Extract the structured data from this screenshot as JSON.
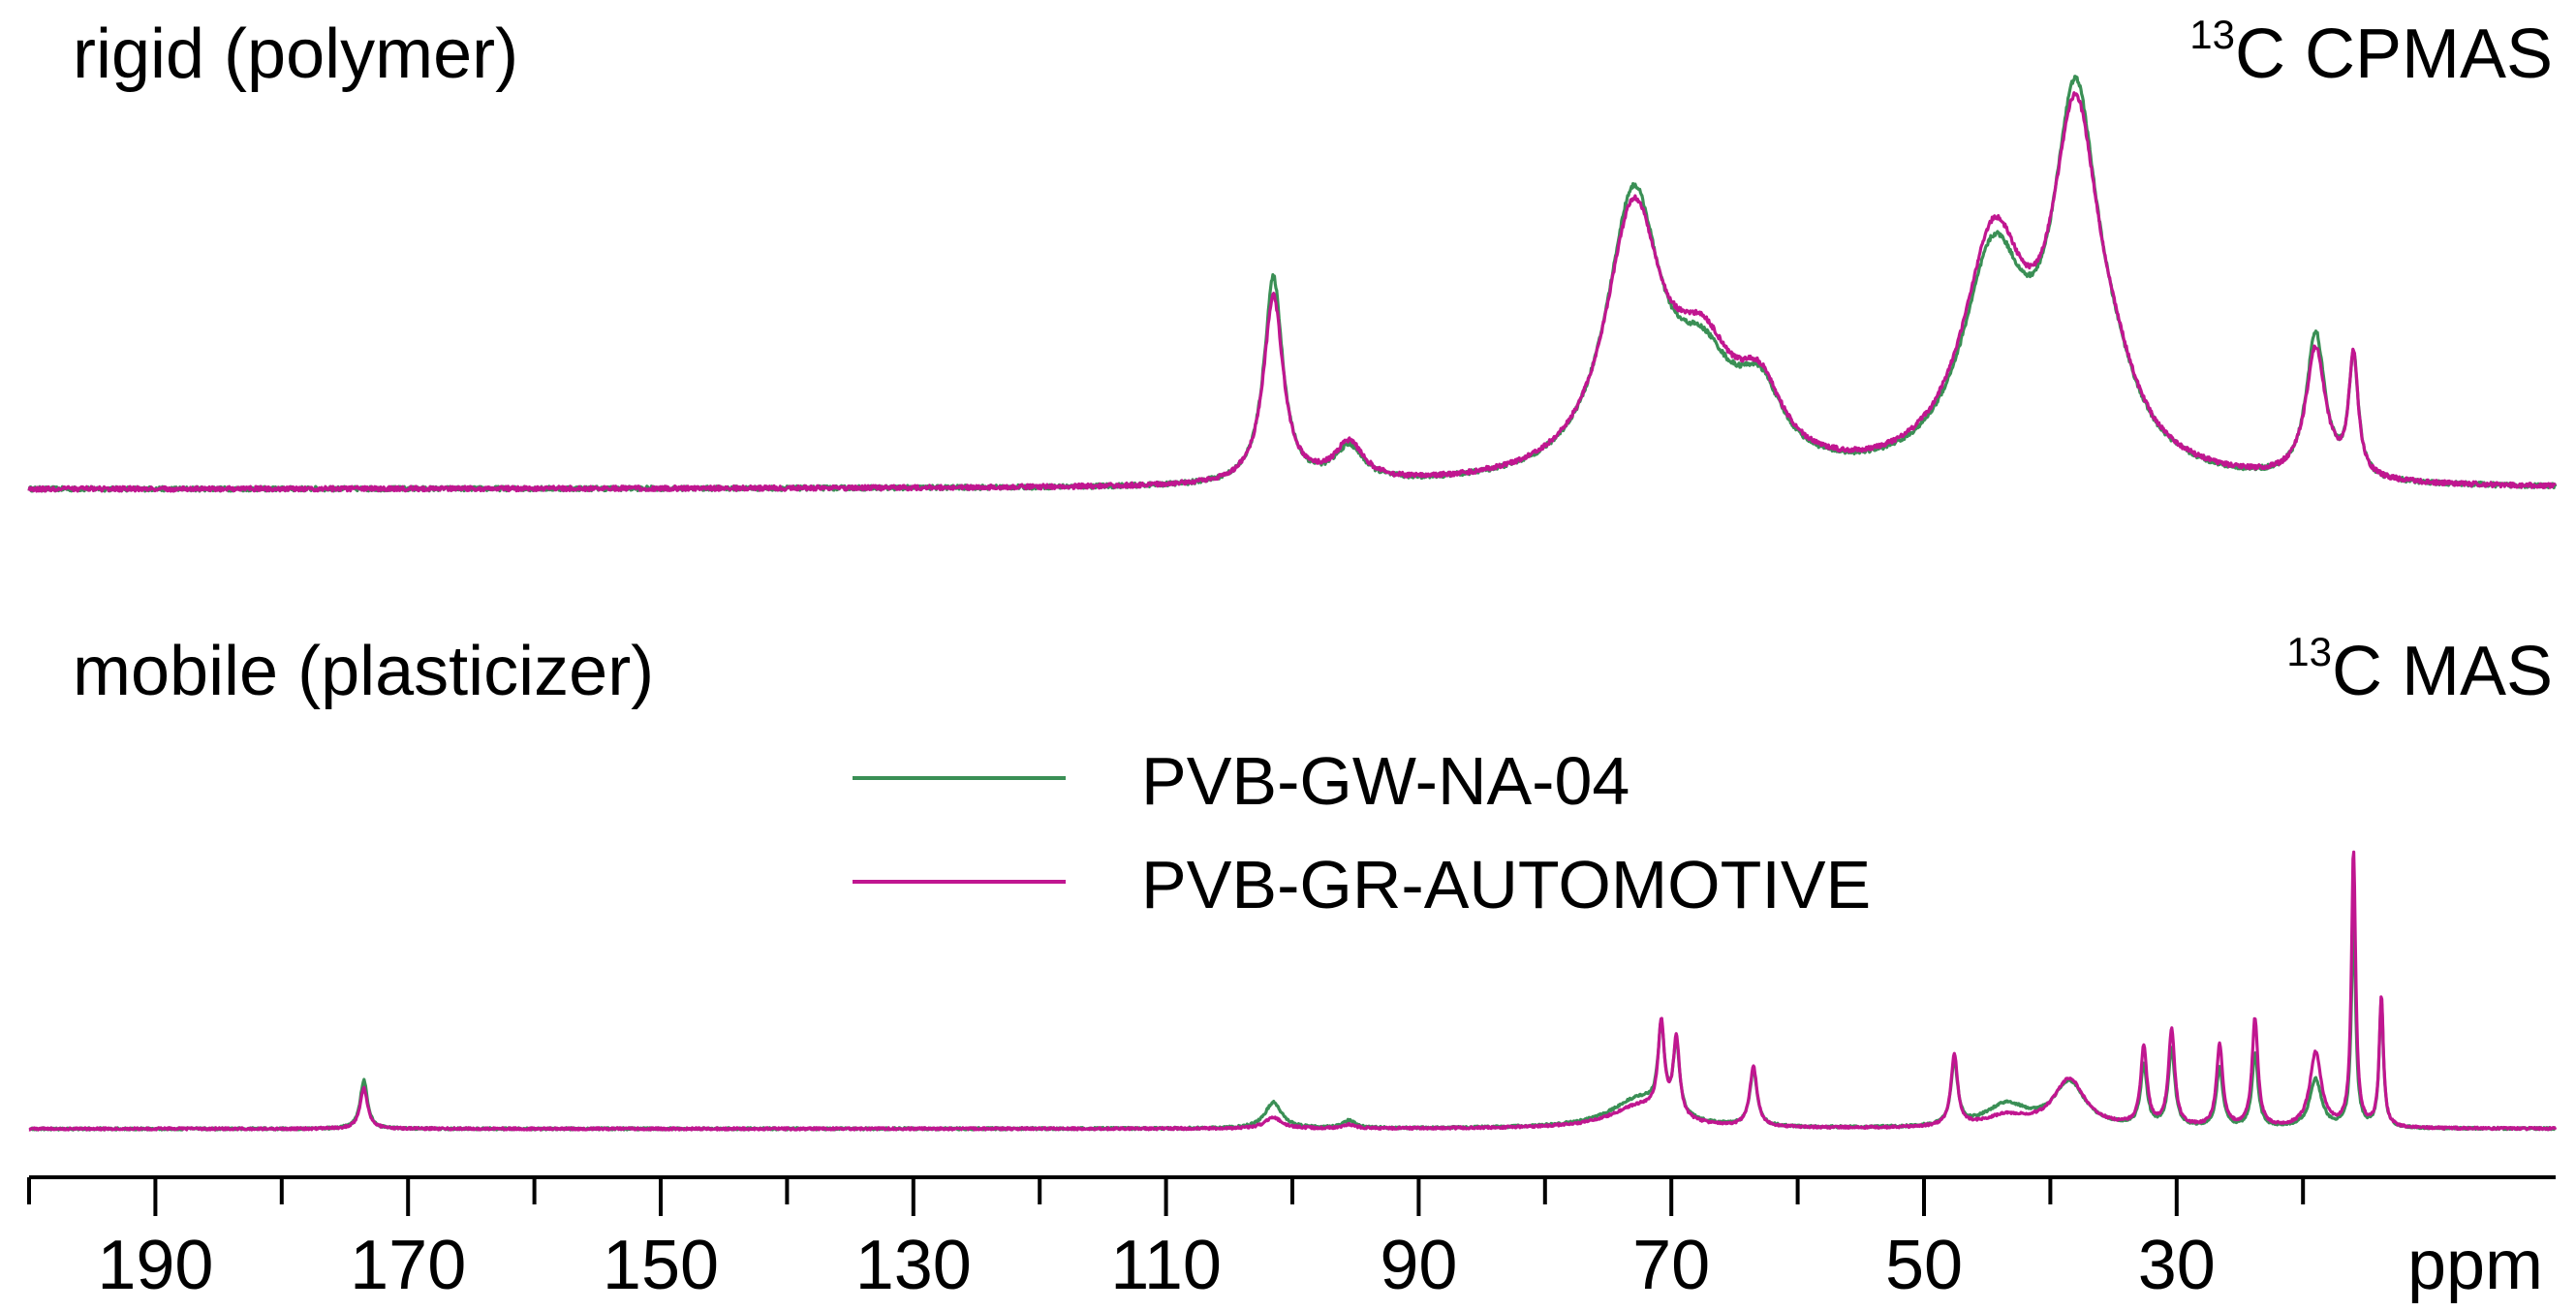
{
  "chart_data": {
    "type": "line",
    "title": "",
    "xlabel": "ppm",
    "x_axis": {
      "reversed": true,
      "range": [
        200,
        0
      ],
      "major_ticks": [
        190,
        170,
        150,
        130,
        110,
        90,
        70,
        50,
        30
      ],
      "tick_labels": [
        "190",
        "170",
        "150",
        "130",
        "110",
        "90",
        "70",
        "50",
        "30"
      ],
      "minor_ticks": [
        200,
        180,
        160,
        140,
        120,
        100,
        80,
        60,
        40,
        20
      ],
      "unit_label": "ppm"
    },
    "legend": {
      "placement": "center",
      "entries": [
        {
          "name": "PVB-GW-NA-04",
          "color": "#3a8f55"
        },
        {
          "name": "PVB-GR-AUTOMOTIVE",
          "color": "#c01690"
        }
      ]
    },
    "panels": [
      {
        "id": "rigid",
        "label": "rigid (polymer)",
        "technique_sup": "13",
        "technique": "C CPMAS",
        "ylim": [
          0,
          1
        ],
        "series": [
          {
            "name": "PVB-GW-NA-04",
            "color": "#3a8f55",
            "baseline": 0.0,
            "peaks": [
              {
                "c": 101.5,
                "h": 0.54,
                "w": 0.9
              },
              {
                "c": 95.5,
                "h": 0.09,
                "w": 1.4
              },
              {
                "c": 73.0,
                "h": 0.72,
                "w": 2.6
              },
              {
                "c": 67.5,
                "h": 0.24,
                "w": 3.0
              },
              {
                "c": 63.0,
                "h": 0.18,
                "w": 2.2
              },
              {
                "c": 44.5,
                "h": 0.55,
                "w": 3.0
              },
              {
                "c": 38.0,
                "h": 0.92,
                "w": 2.2
              },
              {
                "c": 35.0,
                "h": 0.12,
                "w": 2.5
              },
              {
                "c": 19.0,
                "h": 0.38,
                "w": 0.9
              },
              {
                "c": 16.0,
                "h": 0.31,
                "w": 0.45
              }
            ]
          },
          {
            "name": "PVB-GR-AUTOMOTIVE",
            "color": "#c01690",
            "baseline": 0.0,
            "peaks": [
              {
                "c": 101.5,
                "h": 0.49,
                "w": 0.95
              },
              {
                "c": 95.5,
                "h": 0.1,
                "w": 1.4
              },
              {
                "c": 73.0,
                "h": 0.68,
                "w": 2.7
              },
              {
                "c": 67.5,
                "h": 0.27,
                "w": 3.0
              },
              {
                "c": 63.0,
                "h": 0.18,
                "w": 2.2
              },
              {
                "c": 44.5,
                "h": 0.59,
                "w": 3.0
              },
              {
                "c": 38.0,
                "h": 0.87,
                "w": 2.3
              },
              {
                "c": 35.0,
                "h": 0.12,
                "w": 2.5
              },
              {
                "c": 19.0,
                "h": 0.34,
                "w": 0.95
              },
              {
                "c": 16.0,
                "h": 0.31,
                "w": 0.45
              }
            ]
          }
        ]
      },
      {
        "id": "mobile",
        "label": "mobile (plasticizer)",
        "technique_sup": "13",
        "technique": "C MAS",
        "ylim": [
          0,
          1
        ],
        "series": [
          {
            "name": "PVB-GW-NA-04",
            "color": "#3a8f55",
            "baseline": 0.0,
            "peaks": [
              {
                "c": 173.5,
                "h": 0.13,
                "w": 0.35
              },
              {
                "c": 101.5,
                "h": 0.07,
                "w": 0.8
              },
              {
                "c": 95.5,
                "h": 0.02,
                "w": 0.6
              },
              {
                "c": 72.5,
                "h": 0.08,
                "w": 2.8
              },
              {
                "c": 70.8,
                "h": 0.22,
                "w": 0.3
              },
              {
                "c": 69.6,
                "h": 0.19,
                "w": 0.3
              },
              {
                "c": 63.5,
                "h": 0.15,
                "w": 0.35
              },
              {
                "c": 47.6,
                "h": 0.17,
                "w": 0.32
              },
              {
                "c": 43.5,
                "h": 0.06,
                "w": 2.0
              },
              {
                "c": 38.5,
                "h": 0.12,
                "w": 1.5
              },
              {
                "c": 32.6,
                "h": 0.16,
                "w": 0.3
              },
              {
                "c": 30.4,
                "h": 0.21,
                "w": 0.3
              },
              {
                "c": 26.6,
                "h": 0.16,
                "w": 0.3
              },
              {
                "c": 23.8,
                "h": 0.2,
                "w": 0.28
              },
              {
                "c": 19.0,
                "h": 0.13,
                "w": 0.55
              },
              {
                "c": 16.0,
                "h": 0.56,
                "w": 0.2
              },
              {
                "c": 13.8,
                "h": 0.34,
                "w": 0.2
              }
            ]
          },
          {
            "name": "PVB-GR-AUTOMOTIVE",
            "color": "#c01690",
            "baseline": 0.0,
            "peaks": [
              {
                "c": 173.5,
                "h": 0.11,
                "w": 0.35
              },
              {
                "c": 101.5,
                "h": 0.03,
                "w": 0.8
              },
              {
                "c": 95.5,
                "h": 0.01,
                "w": 0.6
              },
              {
                "c": 72.5,
                "h": 0.06,
                "w": 2.8
              },
              {
                "c": 70.8,
                "h": 0.24,
                "w": 0.3
              },
              {
                "c": 69.6,
                "h": 0.21,
                "w": 0.3
              },
              {
                "c": 63.5,
                "h": 0.16,
                "w": 0.35
              },
              {
                "c": 47.6,
                "h": 0.19,
                "w": 0.32
              },
              {
                "c": 43.5,
                "h": 0.03,
                "w": 2.0
              },
              {
                "c": 38.5,
                "h": 0.13,
                "w": 1.5
              },
              {
                "c": 32.6,
                "h": 0.21,
                "w": 0.3
              },
              {
                "c": 30.4,
                "h": 0.26,
                "w": 0.3
              },
              {
                "c": 26.6,
                "h": 0.22,
                "w": 0.3
              },
              {
                "c": 23.8,
                "h": 0.29,
                "w": 0.28
              },
              {
                "c": 19.0,
                "h": 0.2,
                "w": 0.55
              },
              {
                "c": 16.0,
                "h": 0.74,
                "w": 0.2
              },
              {
                "c": 13.8,
                "h": 0.35,
                "w": 0.2
              }
            ]
          }
        ]
      }
    ]
  }
}
